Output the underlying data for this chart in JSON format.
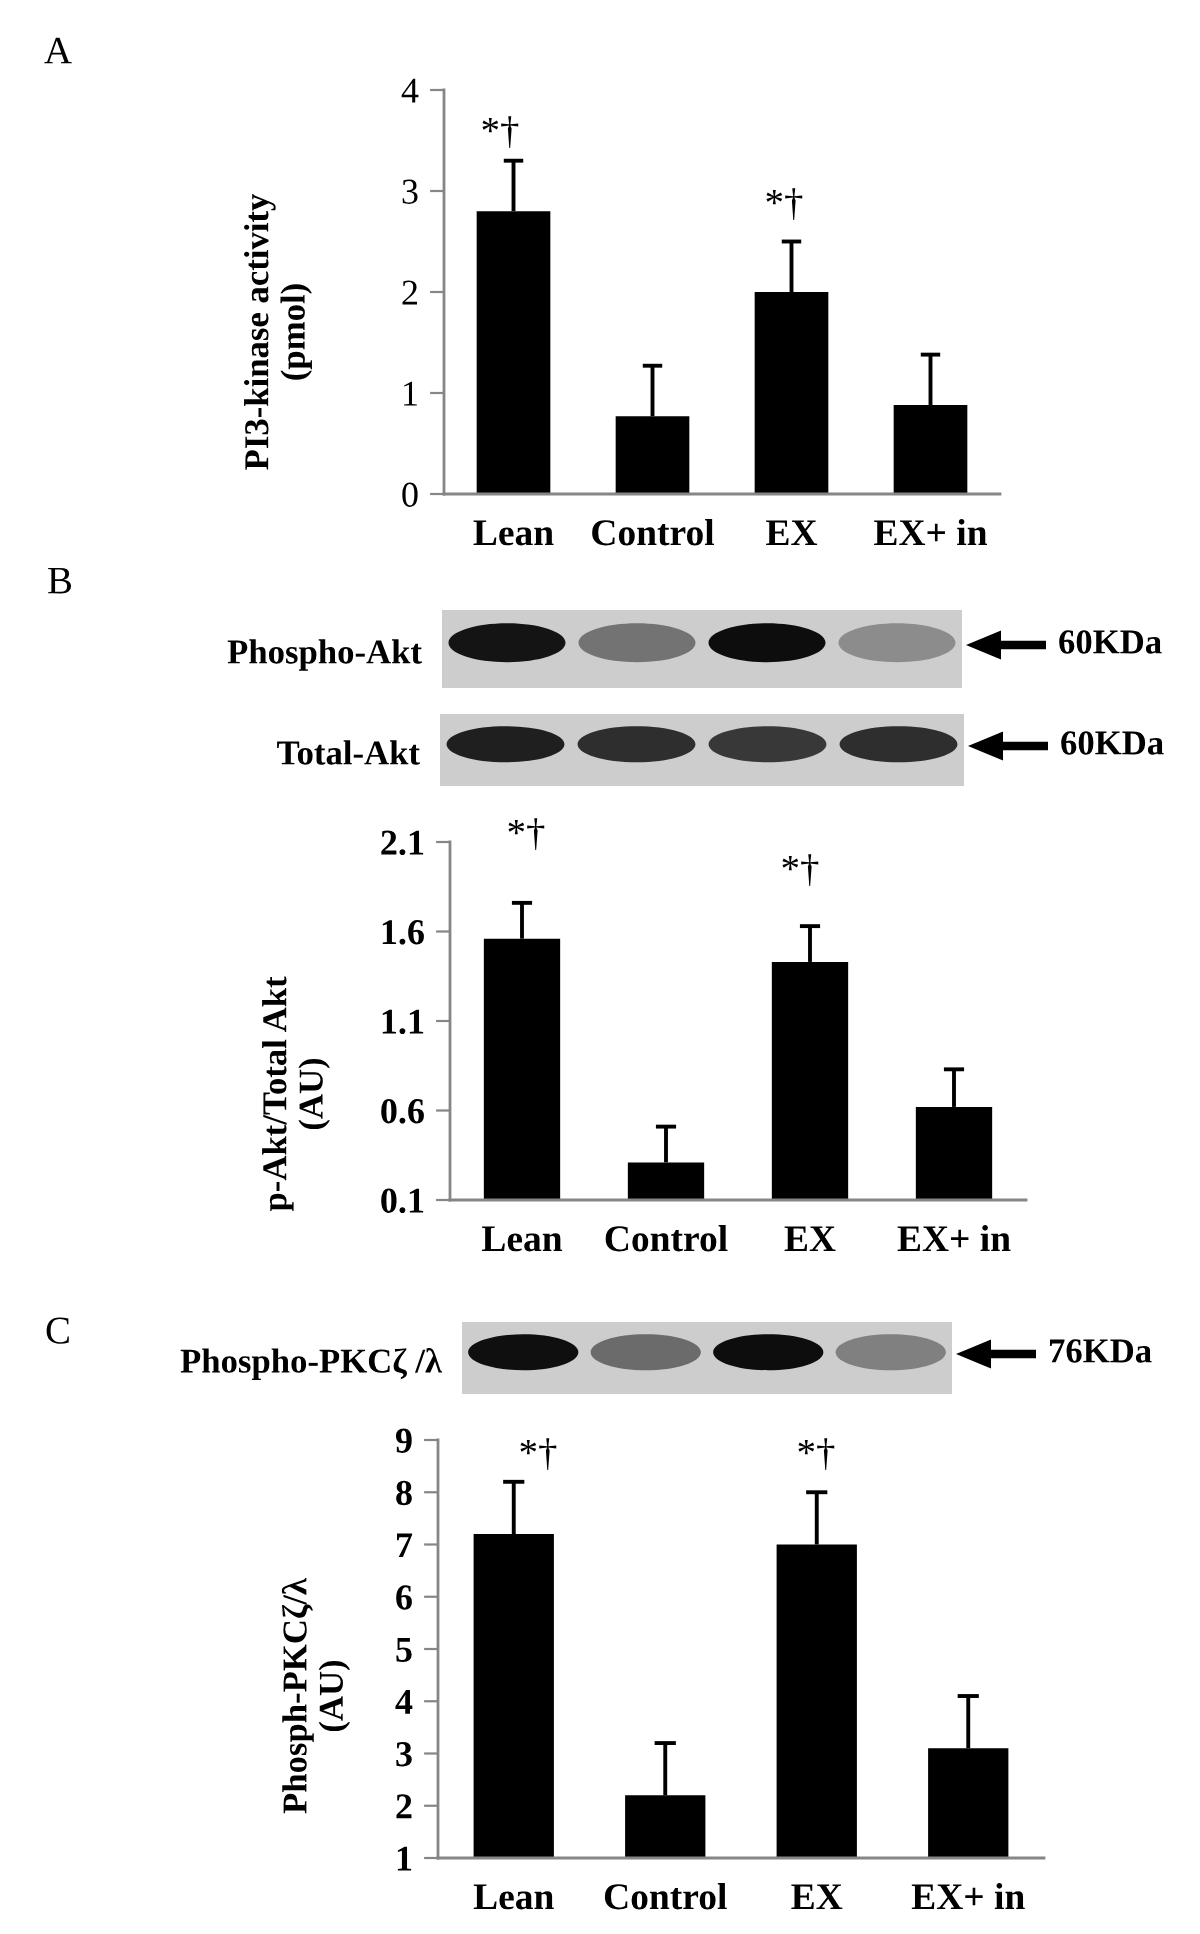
{
  "chart_data": [
    {
      "type": "bar",
      "categories": [
        "Lean",
        "Control",
        "EX",
        "EX+ in"
      ],
      "values": [
        2.8,
        0.77,
        2.0,
        0.88
      ],
      "errors": [
        [
          2.8,
          3.3
        ],
        [
          0.77,
          1.27
        ],
        [
          2.0,
          2.5
        ],
        [
          0.88,
          1.38
        ]
      ],
      "color": "#000000",
      "ylabel": "PI3-kinase activity\n(pmol)",
      "ylim": [
        0,
        4
      ],
      "yticks": [
        0,
        1,
        2,
        3,
        4
      ],
      "annotations": [
        "A",
        "*†",
        "*†"
      ]
    },
    {
      "type": "bar",
      "categories": [
        "Lean",
        "Control",
        "EX",
        "EX+ in"
      ],
      "values": [
        1.56,
        0.31,
        1.43,
        0.62
      ],
      "errors": [
        [
          1.56,
          1.76
        ],
        [
          0.31,
          0.51
        ],
        [
          1.43,
          1.63
        ],
        [
          0.62,
          0.83
        ]
      ],
      "color": "#000000",
      "ylabel": "p-Akt/Total Akt\n(AU)",
      "ylim": [
        0.1,
        2.1
      ],
      "yticks": [
        0.1,
        0.6,
        1.1,
        1.6,
        2.1
      ],
      "annotations": [
        "B",
        "Phospho-Akt",
        "60KDa",
        "Total-Akt",
        "60KDa",
        "*†",
        "*†"
      ]
    },
    {
      "type": "bar",
      "categories": [
        "Lean",
        "Control",
        "EX",
        "EX+ in"
      ],
      "values": [
        7.2,
        2.2,
        7.0,
        3.1
      ],
      "errors": [
        [
          7.2,
          8.2
        ],
        [
          2.2,
          3.2
        ],
        [
          7.0,
          8.0
        ],
        [
          3.1,
          4.1
        ]
      ],
      "color": "#000000",
      "ylabel": "Phosph-PKCζ/λ\n(AU)",
      "ylim": [
        1,
        9
      ],
      "yticks": [
        1,
        2,
        3,
        4,
        5,
        6,
        7,
        8,
        9
      ],
      "annotations": [
        "C",
        "Phospho-PKCζ /λ",
        "76KDa",
        "*†",
        "*†"
      ]
    }
  ]
}
